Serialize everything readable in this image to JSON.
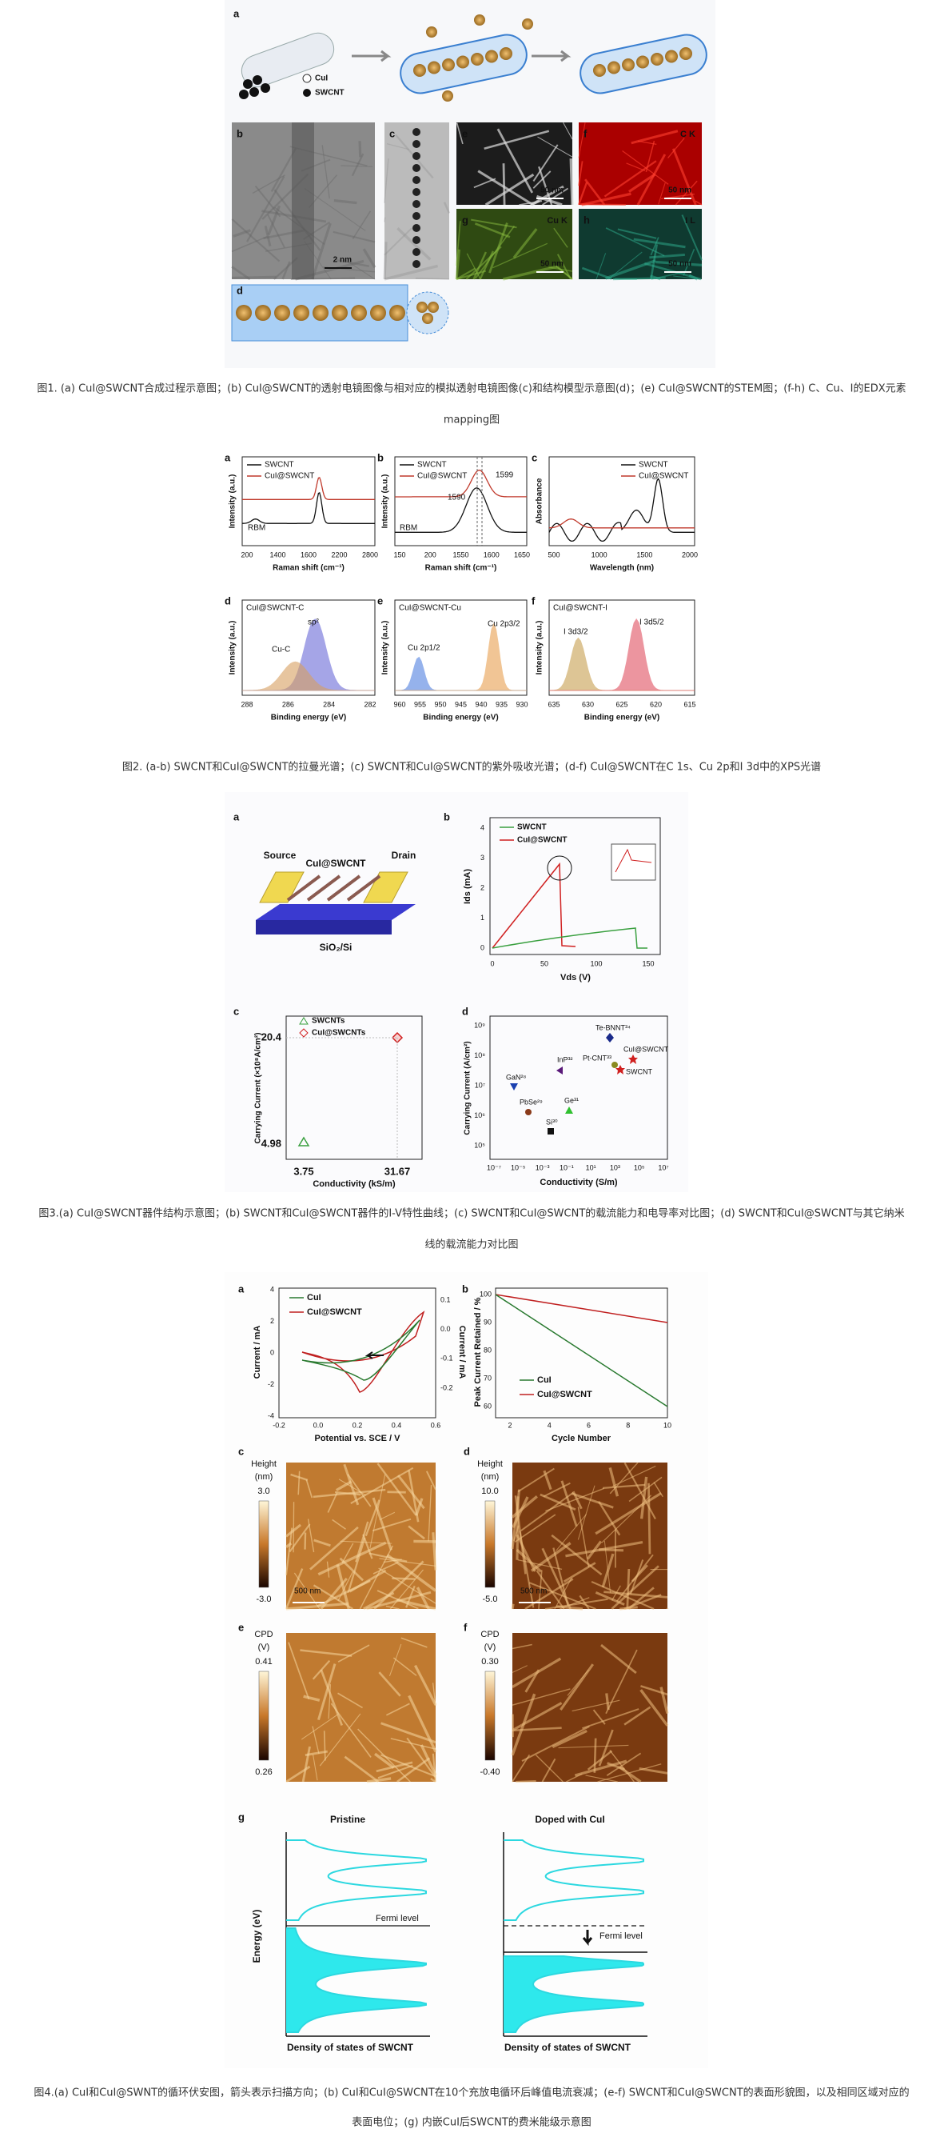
{
  "figure1": {
    "panel_labels": [
      "a",
      "b",
      "c",
      "d",
      "e",
      "f",
      "g",
      "h"
    ],
    "legend": [
      "CuI",
      "SWCNT"
    ],
    "scale_bars": [
      "2 nm",
      "50 nm",
      "50 nm",
      "50 nm",
      "50 nm"
    ],
    "map_labels": [
      "C K",
      "Cu K",
      "I L"
    ],
    "caption": [
      "图1. (a) CuI@SWCNT合成过程示意图；(b) CuI@SWCNT的透射电镜图像与相对应的模拟透射电镜图像(c)和结构模型示意图(d)；(e) CuI@SWCNT的STEM图；(f-h) C、Cu、I的EDX元素",
      "mapping图"
    ]
  },
  "figure2": {
    "panel_labels": [
      "a",
      "b",
      "c",
      "d",
      "e",
      "f"
    ],
    "legend": [
      "SWCNT",
      "CuI@SWCNT"
    ],
    "y_labels": [
      "Intensity (a.u.)",
      "Absorbance"
    ],
    "x_labels": [
      "Raman shift (cm⁻¹)",
      "Wavelength (nm)",
      "Binding energy (eV)"
    ],
    "peaks": [
      "RBM",
      "1599",
      "1590",
      "sp²",
      "Cu-C",
      "Cu 2p1/2",
      "Cu 2p3/2",
      "I 3d3/2",
      "I 3d5/2"
    ],
    "sample_labels": [
      "CuI@SWCNT-C",
      "CuI@SWCNT-Cu",
      "CuI@SWCNT-I"
    ],
    "ticks": {
      "a": [
        "200",
        "1400",
        "1600",
        "2200",
        "2800"
      ],
      "b": [
        "150",
        "200",
        "1550",
        "1600",
        "1650"
      ],
      "c": [
        "500",
        "1000",
        "1500",
        "2000"
      ],
      "d": [
        "288",
        "286",
        "284",
        "282"
      ],
      "e": [
        "960",
        "955",
        "950",
        "945",
        "940",
        "935",
        "930"
      ],
      "f": [
        "635",
        "630",
        "625",
        "620",
        "615"
      ]
    },
    "caption": "图2. (a-b) SWCNT和CuI@SWCNT的拉曼光谱；(c) SWCNT和CuI@SWCNT的紫外吸收光谱；(d-f) CuI@SWCNT在C 1s、Cu 2p和I 3d中的XPS光谱"
  },
  "figure3": {
    "panel_labels": [
      "a",
      "b",
      "c",
      "d"
    ],
    "device_labels": [
      "Source",
      "CuI@SWCNT",
      "Drain",
      "SiO₂/Si"
    ],
    "legend_b": [
      "SWCNT",
      "CuI@SWCNT"
    ],
    "b_y_label": "Ids (mA)",
    "b_x_label": "Vds (V)",
    "b_yticks": [
      "0",
      "1",
      "2",
      "3",
      "4"
    ],
    "b_xticks": [
      "0",
      "50",
      "100",
      "150"
    ],
    "legend_c": [
      "SWCNTs",
      "CuI@SWCNTs"
    ],
    "c_values": [
      20.4,
      4.98,
      3.75,
      31.67
    ],
    "c_y_label": "Carrying Current (×10⁸A/cm²)",
    "c_x_label": "Conductivity (kS/m)",
    "d_points": [
      "Te-BNNT³⁴",
      "CuI@SWCNT",
      "Pt-CNT³³",
      "SWCNT",
      "InP³²",
      "GaN²⁸",
      "PbSe²⁹",
      "Ge³¹",
      "Si³⁰"
    ],
    "d_y_label": "Carrying Current (A/cm²)",
    "d_x_label": "Conductivity (S/m)",
    "d_yticks": [
      "10⁹",
      "10⁸",
      "10⁷",
      "10⁶",
      "10⁵"
    ],
    "d_xticks": [
      "10⁻⁷",
      "10⁻⁵",
      "10⁻³",
      "10⁻¹",
      "10¹",
      "10³",
      "10⁵",
      "10⁷"
    ],
    "caption": [
      "图3.(a) CuI@SWCNT器件结构示意图；(b) SWCNT和CuI@SWCNT器件的I-V特性曲线；(c) SWCNT和CuI@SWCNT的载流能力和电导率对比图；(d) SWCNT和CuI@SWCNT与其它纳米",
      "线的载流能力对比图"
    ]
  },
  "figure4": {
    "panel_labels": [
      "a",
      "b",
      "c",
      "d",
      "e",
      "f",
      "g"
    ],
    "legend": [
      "CuI",
      "CuI@SWCNT"
    ],
    "a_y_label": "Current / mA",
    "a_x_label": "Potential vs. SCE / V",
    "a_yticks": [
      "4",
      "2",
      "0",
      "-2",
      "-4"
    ],
    "a_y2ticks": [
      "0.1",
      "0.0",
      "-0.1",
      "-0.2"
    ],
    "a_xticks": [
      "-0.2",
      "0.0",
      "0.2",
      "0.4",
      "0.6"
    ],
    "b_y_label": "Peak Current Retained / %",
    "b_x_label": "Cycle Number",
    "b_yticks": [
      "100",
      "90",
      "80",
      "70",
      "60"
    ],
    "b_xticks": [
      "2",
      "4",
      "6",
      "8",
      "10"
    ],
    "height_label": [
      "Height",
      "(nm)"
    ],
    "c_range": [
      "3.0",
      "-3.0"
    ],
    "d_range": [
      "10.0",
      "-5.0"
    ],
    "scale_bar": "500 nm",
    "cpd_label": [
      "CPD",
      "(V)"
    ],
    "e_range": [
      "0.41",
      "0.26"
    ],
    "f_range": [
      "0.30",
      "-0.40"
    ],
    "g_titles": [
      "Pristine",
      "Doped with CuI"
    ],
    "g_y_label": "Energy (eV)",
    "fermi": "Fermi level",
    "dos": "Density of states of SWCNT",
    "caption": [
      "图4.(a) CuI和CuI@SWNT的循环伏安图，箭头表示扫描方向；(b) CuI和CuI@SWCNT在10个充放电循环后峰值电流衰减；(e-f) SWCNT和CuI@SWCNT的表面形貌图，以及相同区域对应的",
      "表面电位；(g) 内嵌CuI后SWCNT的费米能级示意图"
    ]
  }
}
